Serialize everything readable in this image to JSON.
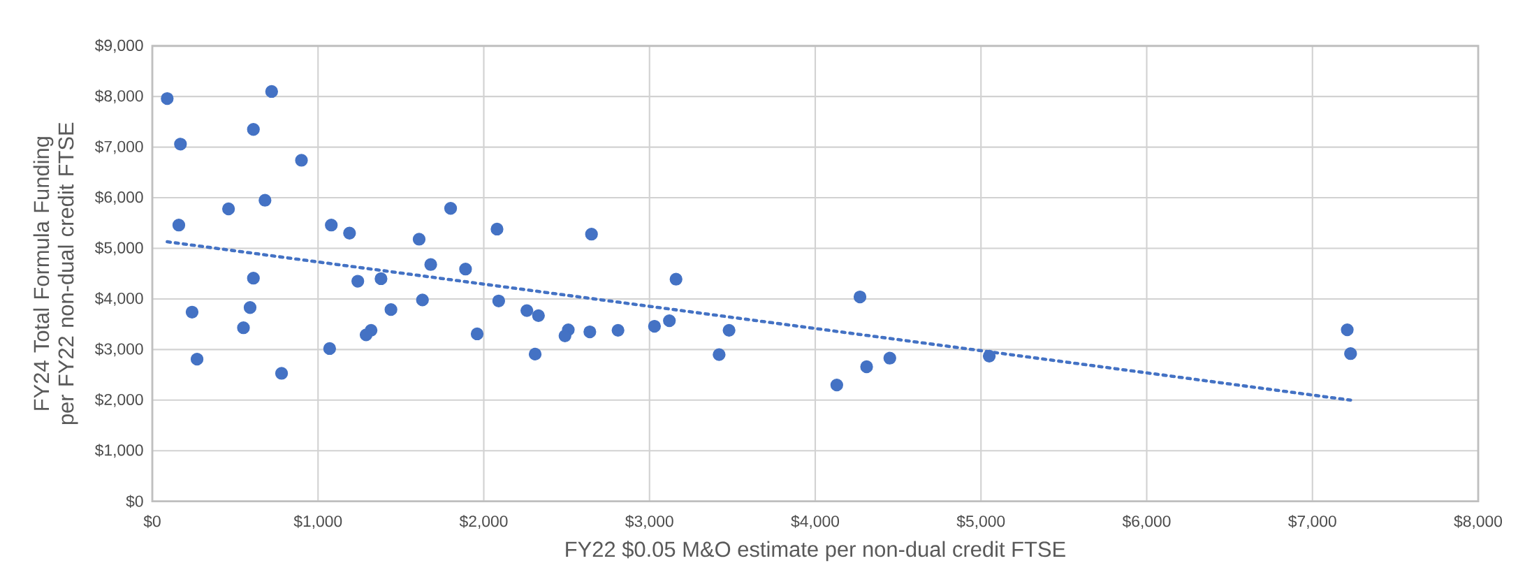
{
  "chart_data": {
    "type": "scatter",
    "xlabel": "FY22 $0.05 M&O estimate per non-dual credit FTSE",
    "ylabel": "FY24 Total Formula Funding per FY22 non-dual credit FTSE",
    "xlim": [
      0,
      8000
    ],
    "ylim": [
      0,
      9000
    ],
    "xticks": [
      {
        "value": 0,
        "label": "$0"
      },
      {
        "value": 1000,
        "label": "$1,000"
      },
      {
        "value": 2000,
        "label": "$2,000"
      },
      {
        "value": 3000,
        "label": "$3,000"
      },
      {
        "value": 4000,
        "label": "$4,000"
      },
      {
        "value": 5000,
        "label": "$5,000"
      },
      {
        "value": 6000,
        "label": "$6,000"
      },
      {
        "value": 7000,
        "label": "$7,000"
      },
      {
        "value": 8000,
        "label": "$8,000"
      }
    ],
    "yticks": [
      {
        "value": 0,
        "label": "$0"
      },
      {
        "value": 1000,
        "label": "$1,000"
      },
      {
        "value": 2000,
        "label": "$2,000"
      },
      {
        "value": 3000,
        "label": "$3,000"
      },
      {
        "value": 4000,
        "label": "$4,000"
      },
      {
        "value": 5000,
        "label": "$5,000"
      },
      {
        "value": 6000,
        "label": "$6,000"
      },
      {
        "value": 7000,
        "label": "$7,000"
      },
      {
        "value": 8000,
        "label": "$8,000"
      },
      {
        "value": 9000,
        "label": "$9,000"
      }
    ],
    "grid": true,
    "legend": false,
    "marker": "circle",
    "series": [
      {
        "color": "#4472c4",
        "x": [
          90,
          720,
          610,
          170,
          900,
          680,
          460,
          160,
          1080,
          1190,
          1800,
          1610,
          2080,
          610,
          1680,
          1890,
          1240,
          1380,
          240,
          590,
          1440,
          1630,
          2090,
          2260,
          550,
          1320,
          1290,
          1960,
          1070,
          270,
          780,
          2650,
          3160,
          2330,
          2510,
          2490,
          2640,
          2810,
          3030,
          3120,
          3480,
          2310,
          3420,
          4270,
          4130,
          4310,
          4450,
          5050,
          7210,
          7230
        ],
        "values": [
          7960,
          8100,
          7350,
          7060,
          6740,
          5950,
          5780,
          5460,
          5460,
          5300,
          5790,
          5180,
          5380,
          4410,
          4680,
          4590,
          4350,
          4400,
          3740,
          3830,
          3790,
          3980,
          3960,
          3770,
          3430,
          3380,
          3290,
          3310,
          3020,
          2810,
          2530,
          5280,
          4390,
          3670,
          3390,
          3270,
          3350,
          3380,
          3460,
          3570,
          3380,
          2910,
          2900,
          4040,
          2300,
          2660,
          2830,
          2870,
          3390,
          2920
        ]
      },
      {
        "type": "line",
        "color": "#4472c4",
        "line_style": "dotted",
        "marker": "none",
        "x": [
          90,
          7230
        ],
        "values": [
          5130,
          2000
        ]
      }
    ]
  }
}
